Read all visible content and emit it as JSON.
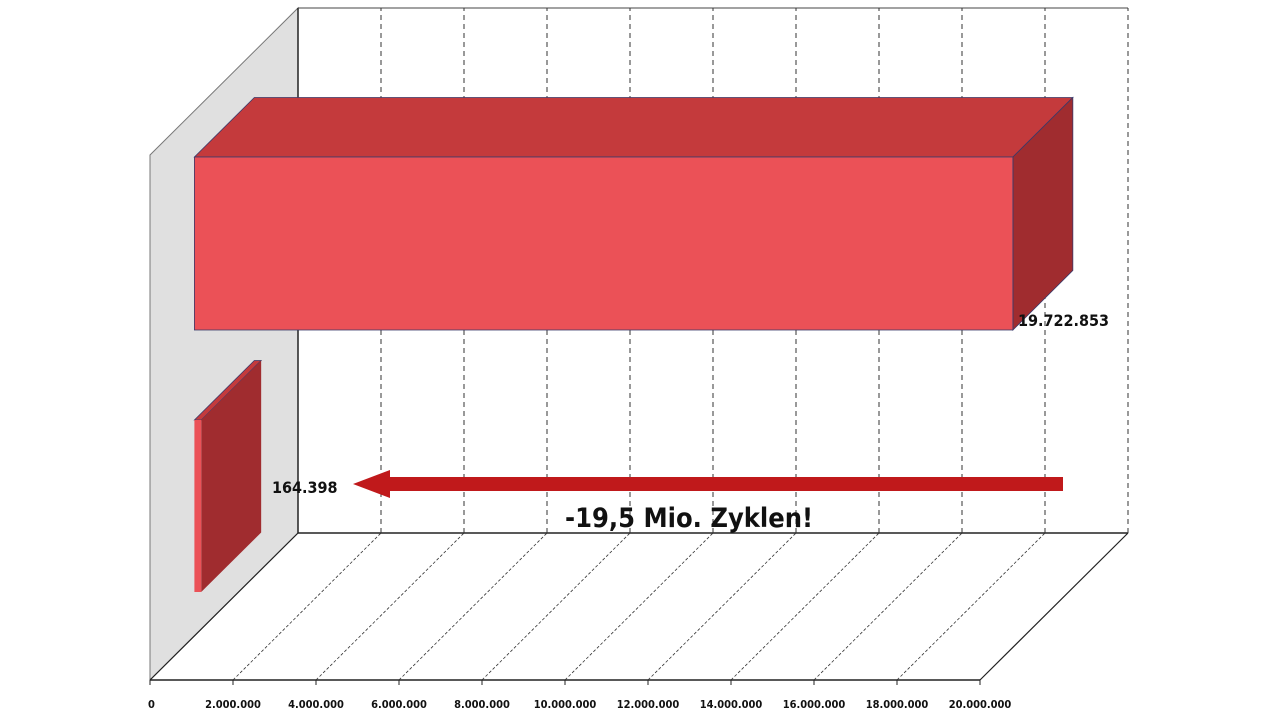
{
  "chart_data": {
    "type": "bar",
    "orientation": "horizontal",
    "style": "3d",
    "categories": [
      "",
      ""
    ],
    "values": [
      19722853,
      164398
    ],
    "data_labels": [
      "19.722.853",
      "164.398"
    ],
    "xlim": [
      0,
      20000000
    ],
    "xticks": [
      "0",
      "2.000.000",
      "4.000.000",
      "6.000.000",
      "8.000.000",
      "10.000.000",
      "12.000.000",
      "14.000.000",
      "16.000.000",
      "18.000.000",
      "20.000.000"
    ],
    "grid": true,
    "legend": "none",
    "annotation": "-19,5 Mio. Zyklen!",
    "colors": {
      "bar_front": "#eb5157",
      "bar_top": "#c43a3c",
      "bar_side": "#a02c2f",
      "arrow": "#c0191b",
      "wall": "#e0e0e0"
    }
  }
}
